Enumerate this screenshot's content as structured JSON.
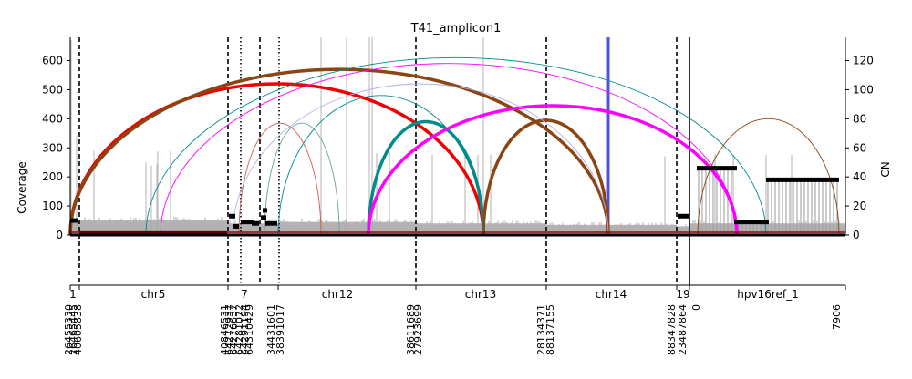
{
  "chart_data": {
    "type": "line",
    "title": "T41_amplicon1",
    "ylabel": "Coverage",
    "y2label": "CN",
    "ylim": [
      0,
      680
    ],
    "y2lim": [
      0,
      136
    ],
    "yticks": [
      "0",
      "100",
      "200",
      "300",
      "400",
      "500",
      "600"
    ],
    "y2ticks": [
      "0",
      "20",
      "40",
      "60",
      "80",
      "100",
      "120"
    ],
    "segments": [
      {
        "name": "1",
        "start_label": "26455330",
        "end_label": "40605838",
        "coverage_level": 45
      },
      {
        "name": "chr5",
        "coverage_level": 50
      },
      {
        "name": "7",
        "start_label": "40846531",
        "end_label": "64310429",
        "coverage_level": 40
      },
      {
        "name": "chr12",
        "start_label": "34431601",
        "end_label": "38391017",
        "coverage_level": 45
      },
      {
        "name": "chr13",
        "start_label": "38611689",
        "end_label": "27923699",
        "coverage_level": 40
      },
      {
        "name": "chr14",
        "start_label": "28134371",
        "end_label": "88137155",
        "coverage_level": 35
      },
      {
        "name": "19",
        "start_label": "88347828",
        "end_label": "23487864",
        "coverage_level": 30
      },
      {
        "name": "hpv16ref_1",
        "start_label": "0",
        "end_label": "7906",
        "coverage_level": 40
      }
    ],
    "x_tick_labels": [
      "26455330",
      "26465445",
      "40605838",
      "40846531",
      "64272937",
      "64276637",
      "64281072",
      "64291194",
      "64310429",
      "34431601",
      "38391017",
      "38611689",
      "27923699",
      "28134371",
      "88137155",
      "88347828",
      "23487864",
      "0",
      "7906"
    ],
    "cn_segments": [
      {
        "segment": "1",
        "cn": 10
      },
      {
        "segment": "chr5",
        "cn": 1
      },
      {
        "segment": "7",
        "cn": 13
      },
      {
        "segment": "7",
        "cn": 6
      },
      {
        "segment": "7",
        "cn": 9
      },
      {
        "segment": "7",
        "cn": 8
      },
      {
        "segment": "7",
        "cn": 12
      },
      {
        "segment": "7",
        "cn": 17
      },
      {
        "segment": "7",
        "cn": 8
      },
      {
        "segment": "19",
        "cn": 13
      },
      {
        "segment": "hpv16ref_1",
        "cn": 46
      },
      {
        "segment": "hpv16ref_1",
        "cn": 9
      },
      {
        "segment": "hpv16ref_1",
        "cn": 38
      }
    ],
    "breakpoint_arcs": [
      {
        "from_segment": "1",
        "to_segment": "chr13",
        "height": 520,
        "color": "#ee0000",
        "weight": "thick"
      },
      {
        "from_segment": "1",
        "to_segment": "chr14",
        "height": 570,
        "color": "#8b4513",
        "weight": "thick"
      },
      {
        "from_segment": "chr12",
        "to_segment": "chr13",
        "height": 390,
        "color": "#008b8b",
        "weight": "thick"
      },
      {
        "from_segment": "chr12",
        "to_segment": "hpv16ref_1",
        "height": 445,
        "color": "#ff00ff",
        "weight": "thick"
      },
      {
        "from_segment": "chr13",
        "to_segment": "chr14",
        "height": 395,
        "color": "#8b4513",
        "weight": "thick"
      },
      {
        "from_segment": "chr5",
        "to_segment": "hpv16ref_1",
        "height": 610,
        "color": "#008b8b",
        "weight": "thin"
      },
      {
        "from_segment": "chr5",
        "to_segment": "hpv16ref_1",
        "height": 590,
        "color": "#ff00ff",
        "weight": "thin"
      },
      {
        "from_segment": "7",
        "to_segment": "chr14",
        "height": 520,
        "color": "#b0b0ee",
        "weight": "thin"
      },
      {
        "from_segment": "chr12",
        "to_segment": "chr13",
        "height": 480,
        "color": "#008b8b",
        "weight": "thin"
      },
      {
        "from_segment": "7",
        "to_segment": "chr12",
        "height": 385,
        "color": "#cd5c5c",
        "weight": "thin"
      },
      {
        "from_segment": "7",
        "to_segment": "chr12",
        "height": 385,
        "color": "#6aa0a0",
        "weight": "thin"
      },
      {
        "from_segment": "hpv16ref_1",
        "to_segment": "hpv16ref_1",
        "height": 400,
        "color": "#8b4513",
        "weight": "thin"
      }
    ],
    "vertical_markers": [
      {
        "position_label": "26465445",
        "style": "dashed"
      },
      {
        "position_label": "40846531",
        "style": "dashed"
      },
      {
        "position_label": "64276637",
        "style": "dotted"
      },
      {
        "position_label": "64291194",
        "style": "dashed"
      },
      {
        "position_label": "34431601",
        "style": "dotted"
      },
      {
        "position_label": "38611689",
        "style": "dashed"
      },
      {
        "position_label": "28134371",
        "style": "dashed"
      },
      {
        "position_label": "88347828",
        "style": "dashed"
      },
      {
        "position_label": "0",
        "style": "solid"
      }
    ],
    "highlight_line": {
      "position": "chr14 end",
      "color": "#3333dd"
    },
    "grid": false,
    "legend": "none"
  }
}
